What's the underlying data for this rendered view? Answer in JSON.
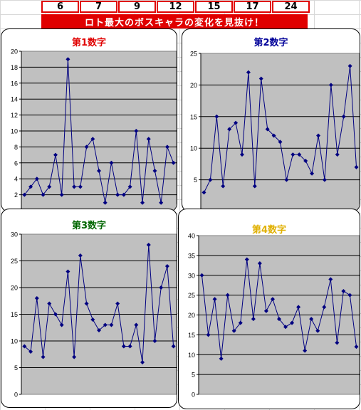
{
  "numbers": [
    "6",
    "7",
    "9",
    "12",
    "15",
    "17",
    "24"
  ],
  "banner": "ロト最大のボスキャラの変化を見抜け！",
  "colors": {
    "accent": "#e00000",
    "plot_bg": "#c0c0c0",
    "series": "#000080",
    "title1": "#e00000",
    "title2": "#000099",
    "title3": "#006600",
    "title4": "#e0b000"
  },
  "chart_data": [
    {
      "type": "line",
      "title": "第1数字",
      "ylim": [
        0,
        20
      ],
      "yticks": [
        0,
        2,
        4,
        6,
        8,
        10,
        12,
        14,
        16,
        18,
        20
      ],
      "yticklabels": [
        "",
        "2",
        "4",
        "6",
        "8",
        "10",
        "12",
        "14",
        "16",
        "18",
        "20"
      ],
      "values": [
        2,
        3,
        4,
        2,
        3,
        7,
        2,
        19,
        3,
        3,
        8,
        9,
        5,
        1,
        6,
        2,
        2,
        3,
        10,
        1,
        9,
        5,
        1,
        8,
        6
      ]
    },
    {
      "type": "line",
      "title": "第2数字",
      "ylim": [
        0,
        25
      ],
      "yticks": [
        0,
        5,
        10,
        15,
        20,
        25
      ],
      "yticklabels": [
        "",
        "5",
        "10",
        "15",
        "20",
        "25"
      ],
      "values": [
        3,
        5,
        15,
        4,
        13,
        14,
        9,
        22,
        4,
        21,
        13,
        12,
        11,
        5,
        9,
        9,
        8,
        6,
        12,
        5,
        20,
        9,
        15,
        23,
        7
      ]
    },
    {
      "type": "line",
      "title": "第3数字",
      "ylim": [
        0,
        30
      ],
      "yticks": [
        0,
        5,
        10,
        15,
        20,
        25,
        30
      ],
      "yticklabels": [
        "0",
        "5",
        "10",
        "15",
        "20",
        "25",
        "30"
      ],
      "values": [
        9,
        8,
        18,
        7,
        17,
        15,
        13,
        23,
        7,
        26,
        17,
        14,
        12,
        13,
        13,
        17,
        9,
        9,
        13,
        6,
        28,
        10,
        20,
        24,
        9
      ]
    },
    {
      "type": "line",
      "title": "第4数字",
      "ylim": [
        0,
        40
      ],
      "yticks": [
        0,
        5,
        10,
        15,
        20,
        25,
        30,
        35,
        40
      ],
      "yticklabels": [
        "0",
        "5",
        "10",
        "15",
        "20",
        "25",
        "30",
        "35",
        "40"
      ],
      "values": [
        30,
        15,
        24,
        9,
        25,
        16,
        18,
        34,
        19,
        33,
        21,
        24,
        19,
        17,
        18,
        22,
        11,
        19,
        16,
        22,
        29,
        13,
        26,
        25,
        12
      ]
    }
  ]
}
